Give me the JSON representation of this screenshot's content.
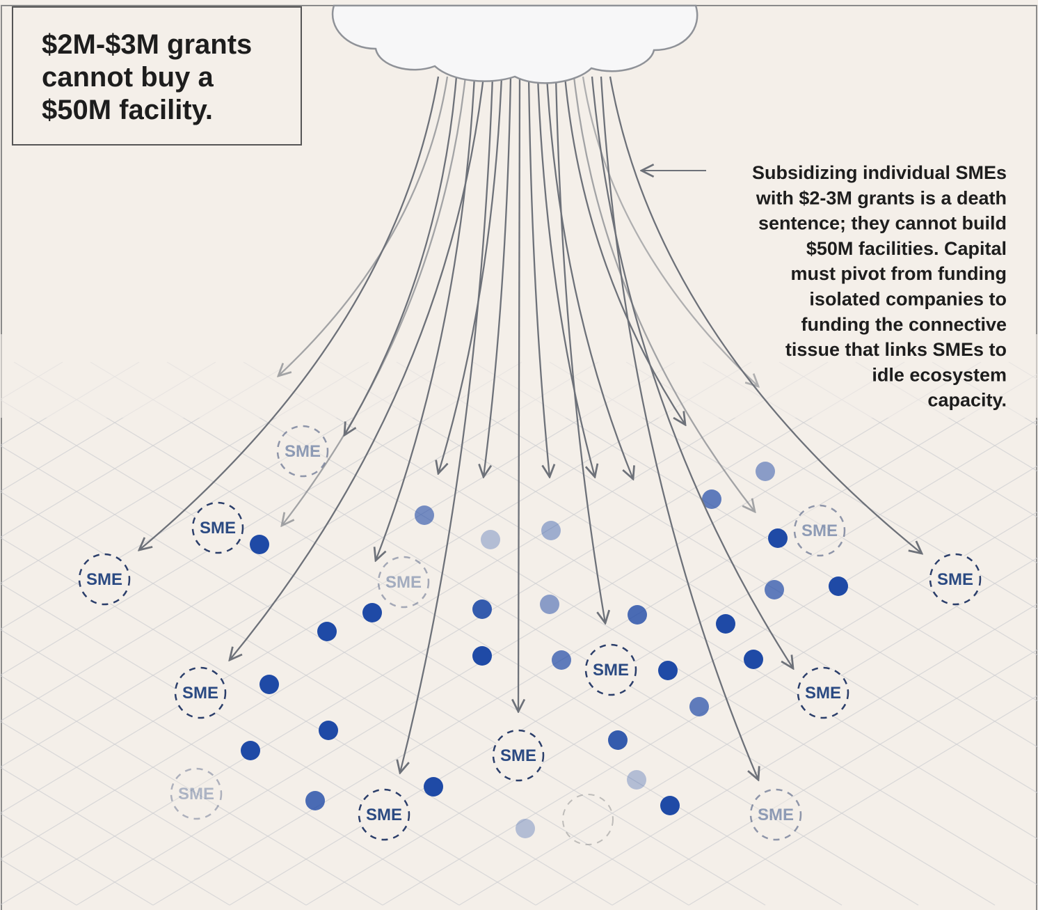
{
  "title": [
    "$2M-$3M grants",
    "cannot buy a",
    "$50M facility."
  ],
  "annotation": [
    "Subsidizing individual SMEs",
    "with $2-3M grants is a death",
    "sentence; they cannot build",
    "$50M facilities. Capital",
    "must pivot from funding",
    "isolated companies to",
    "funding the connective",
    "tissue that links SMEs to",
    "idle ecosystem",
    "capacity."
  ],
  "nodes": [
    {
      "label": "SME"
    },
    {
      "label": "SME"
    },
    {
      "label": "SME"
    },
    {
      "label": "SME"
    },
    {
      "label": "SME"
    },
    {
      "label": "SME"
    },
    {
      "label": "SME"
    },
    {
      "label": "SME"
    },
    {
      "label": "SME"
    },
    {
      "label": "SME"
    },
    {
      "label": "SME"
    },
    {
      "label": "SME"
    },
    {
      "label": "SME"
    }
  ]
}
